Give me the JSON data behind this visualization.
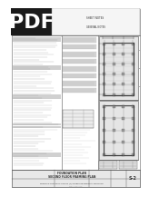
{
  "bg_color": "#ffffff",
  "pdf_badge_color": "#1a1a1a",
  "pdf_text_color": "#ffffff",
  "pdf_font_size": 16,
  "border_color": "#666666",
  "dark_line": "#555555",
  "med_line": "#888888",
  "light_line": "#bbbbbb",
  "title_bar_color": "#e8e8e8",
  "content_bg": "#f5f5f5",
  "drawing_bg": "#ececec",
  "text_dark": "#333333",
  "text_med": "#555555",
  "grid_color": "#999999",
  "hatch_color": "#aaaaaa",
  "plan_bg": "#e5e5e5",
  "detail_bg": "#e8e8e8"
}
